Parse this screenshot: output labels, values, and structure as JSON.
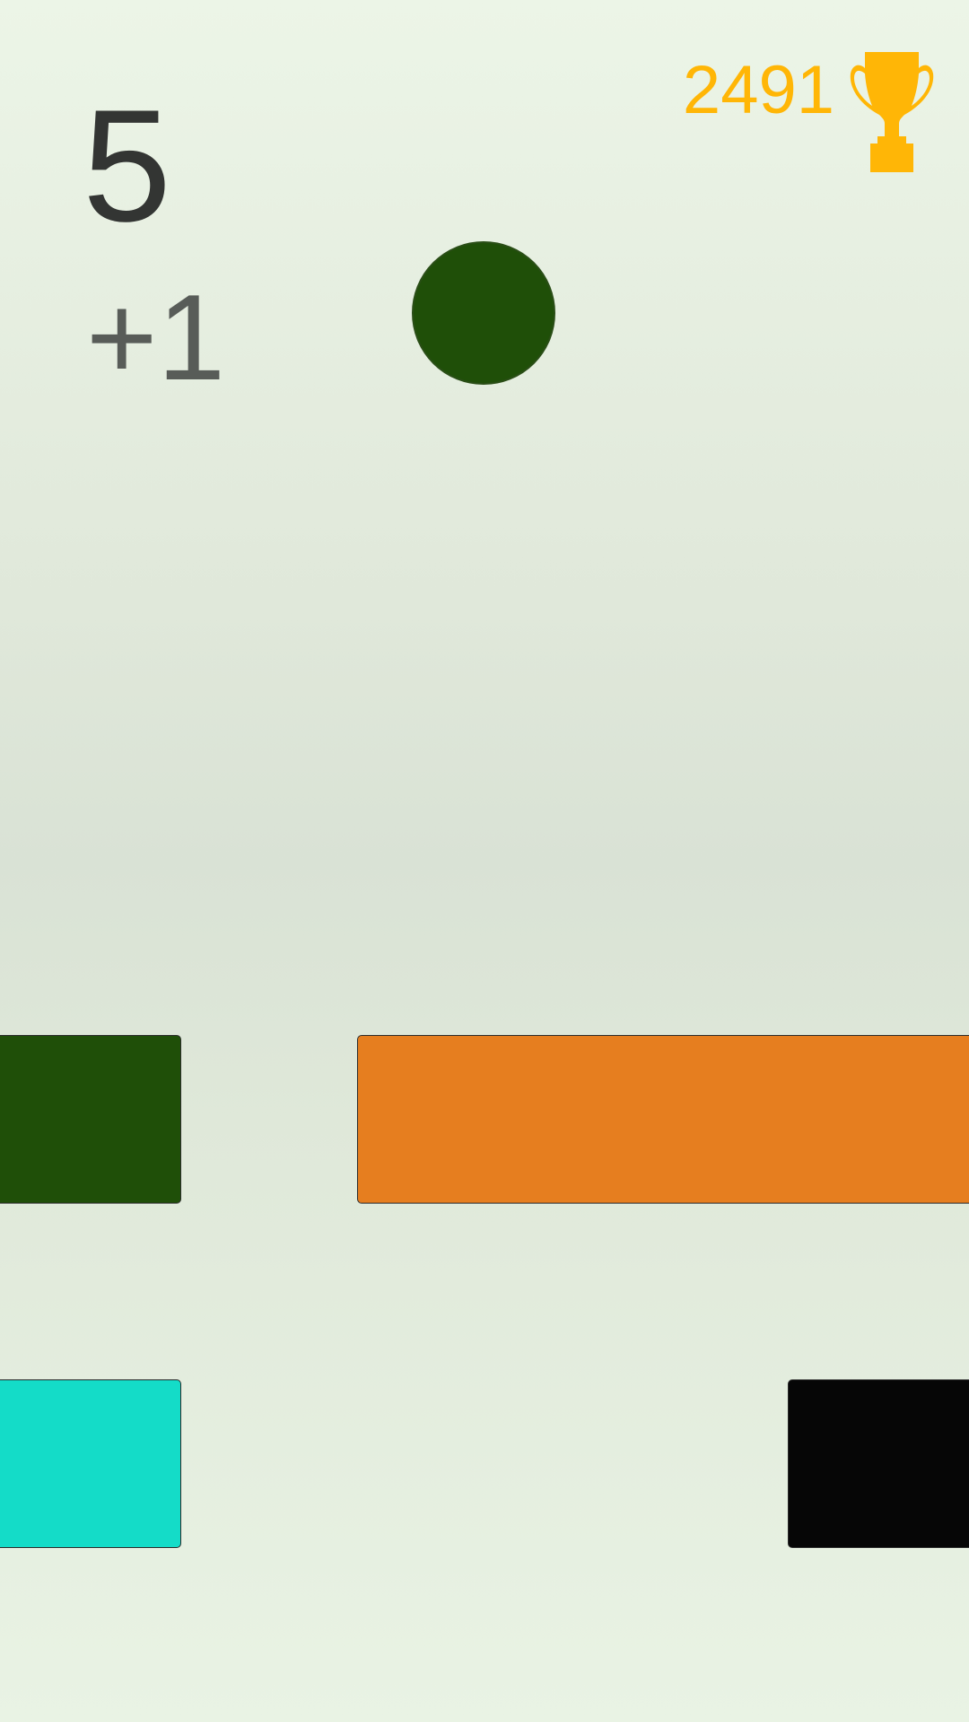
{
  "hud": {
    "score": "5",
    "bonus": "+1",
    "best_score": "2491",
    "trophy_icon": "trophy-icon",
    "colors": {
      "best_score": "#ffb606",
      "trophy": "#ffb606"
    }
  },
  "ball": {
    "color": "#1f4f08"
  },
  "blocks": [
    {
      "name": "block-left-top",
      "color": "#1f4f08"
    },
    {
      "name": "block-right-top",
      "color": "#e67e1f"
    },
    {
      "name": "block-left-bottom",
      "color": "#14dcc8"
    },
    {
      "name": "block-right-bottom",
      "color": "#060606"
    }
  ]
}
